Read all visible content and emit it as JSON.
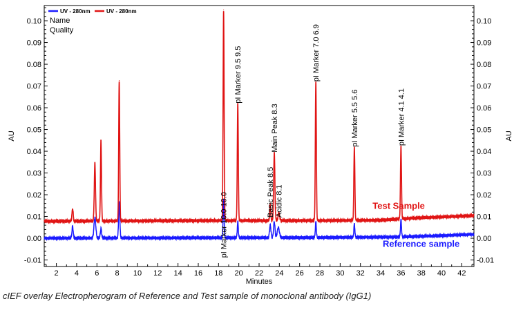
{
  "caption": "cIEF overlay Electropherogram of Reference and Test sample of monoclonal antibody (IgG1)",
  "chart_data": {
    "type": "line",
    "xlabel": "Minutes",
    "ylabel_left": "AU",
    "ylabel_right": "AU",
    "xlim": [
      0.8,
      43.2
    ],
    "ylim": [
      -0.013,
      0.107
    ],
    "x_ticks": [
      2,
      4,
      6,
      8,
      10,
      12,
      14,
      16,
      18,
      20,
      22,
      24,
      26,
      28,
      30,
      32,
      34,
      36,
      38,
      40,
      42
    ],
    "x_tick_labels": [
      "2",
      "4",
      "6",
      "8",
      "10",
      "12",
      "14",
      "16",
      "18",
      "20",
      "22",
      "24",
      "26",
      "28",
      "30",
      "32",
      "34",
      "36",
      "38",
      "40",
      "42"
    ],
    "y_ticks": [
      -0.01,
      0.0,
      0.01,
      0.02,
      0.03,
      0.04,
      0.05,
      0.06,
      0.07,
      0.08,
      0.09,
      0.1
    ],
    "y_tick_labels": [
      "-0.01",
      "0.00",
      "0.01",
      "0.02",
      "0.03",
      "0.04",
      "0.05",
      "0.06",
      "0.07",
      "0.08",
      "0.09",
      "0.10"
    ],
    "legend": {
      "placement": "top-left",
      "entries": [
        {
          "label": "UV - 280nm",
          "color": "#1a1aff"
        },
        {
          "label": "UV - 280nm",
          "color": "#e01414"
        }
      ],
      "extra_lines": [
        "Name",
        "Quality"
      ]
    },
    "series": [
      {
        "name": "Reference sample",
        "color": "#1a1aff",
        "baseline": [
          [
            0.8,
            0.0
          ],
          [
            16,
            0.0002
          ],
          [
            28,
            0.0003
          ],
          [
            36,
            0.0006
          ],
          [
            40,
            0.0012
          ],
          [
            43.2,
            0.0018
          ]
        ],
        "peaks": [
          {
            "x": 3.6,
            "y": 0.0055,
            "w": 0.06
          },
          {
            "x": 5.8,
            "y": 0.0095,
            "w": 0.09
          },
          {
            "x": 6.4,
            "y": 0.0045,
            "w": 0.06
          },
          {
            "x": 8.2,
            "y": 0.0165,
            "w": 0.06
          },
          {
            "x": 18.5,
            "y": 0.0175,
            "w": 0.05
          },
          {
            "x": 19.9,
            "y": 0.0075,
            "w": 0.05
          },
          {
            "x": 23.1,
            "y": 0.006,
            "w": 0.07
          },
          {
            "x": 23.5,
            "y": 0.0075,
            "w": 0.07
          },
          {
            "x": 23.9,
            "y": 0.005,
            "w": 0.1
          },
          {
            "x": 27.6,
            "y": 0.0075,
            "w": 0.05
          },
          {
            "x": 31.4,
            "y": 0.0065,
            "w": 0.05
          },
          {
            "x": 36.0,
            "y": 0.0085,
            "w": 0.05
          }
        ]
      },
      {
        "name": "Test Sample",
        "color": "#e01414",
        "baseline": [
          [
            0.8,
            0.0078
          ],
          [
            16,
            0.0081
          ],
          [
            28,
            0.0081
          ],
          [
            34,
            0.0083
          ],
          [
            37,
            0.0092
          ],
          [
            40,
            0.0098
          ],
          [
            43.2,
            0.0104
          ]
        ],
        "peaks": [
          {
            "x": 3.6,
            "y": 0.0135,
            "w": 0.06
          },
          {
            "x": 5.8,
            "y": 0.0345,
            "w": 0.06
          },
          {
            "x": 6.4,
            "y": 0.045,
            "w": 0.05
          },
          {
            "x": 8.2,
            "y": 0.0725,
            "w": 0.05
          },
          {
            "x": 18.5,
            "y": 0.105,
            "w": 0.05
          },
          {
            "x": 19.9,
            "y": 0.062,
            "w": 0.05
          },
          {
            "x": 23.1,
            "y": 0.0155,
            "w": 0.05
          },
          {
            "x": 23.5,
            "y": 0.0395,
            "w": 0.06
          },
          {
            "x": 23.95,
            "y": 0.0115,
            "w": 0.08
          },
          {
            "x": 27.6,
            "y": 0.072,
            "w": 0.05
          },
          {
            "x": 31.4,
            "y": 0.042,
            "w": 0.05
          },
          {
            "x": 36.0,
            "y": 0.0425,
            "w": 0.05
          }
        ]
      }
    ],
    "peak_labels": [
      {
        "text": "pI Marker  10.0  10.0",
        "x": 18.5,
        "y": -0.009
      },
      {
        "text": "pI Marker  9.5  9.5",
        "x": 19.9,
        "y": 0.062
      },
      {
        "text": "Basic Peak  8.5",
        "x": 23.1,
        "y": 0.0095
      },
      {
        "text": "Main Peak  8.3",
        "x": 23.5,
        "y": 0.0395
      },
      {
        "text": "Acidic  8.1",
        "x": 23.95,
        "y": 0.0095
      },
      {
        "text": "pI Marker  7.0  6.9",
        "x": 27.6,
        "y": 0.072
      },
      {
        "text": "pI Marker  5.5  5.6",
        "x": 31.4,
        "y": 0.042
      },
      {
        "text": "pI Marker  4.1  4.1",
        "x": 36.0,
        "y": 0.0425
      }
    ],
    "annotations": [
      {
        "text": "Test Sample",
        "color": "#e01414",
        "x": 33.2,
        "y": 0.0135
      },
      {
        "text": "Reference sample",
        "color": "#1a1aff",
        "x": 34.2,
        "y": -0.004
      }
    ]
  }
}
